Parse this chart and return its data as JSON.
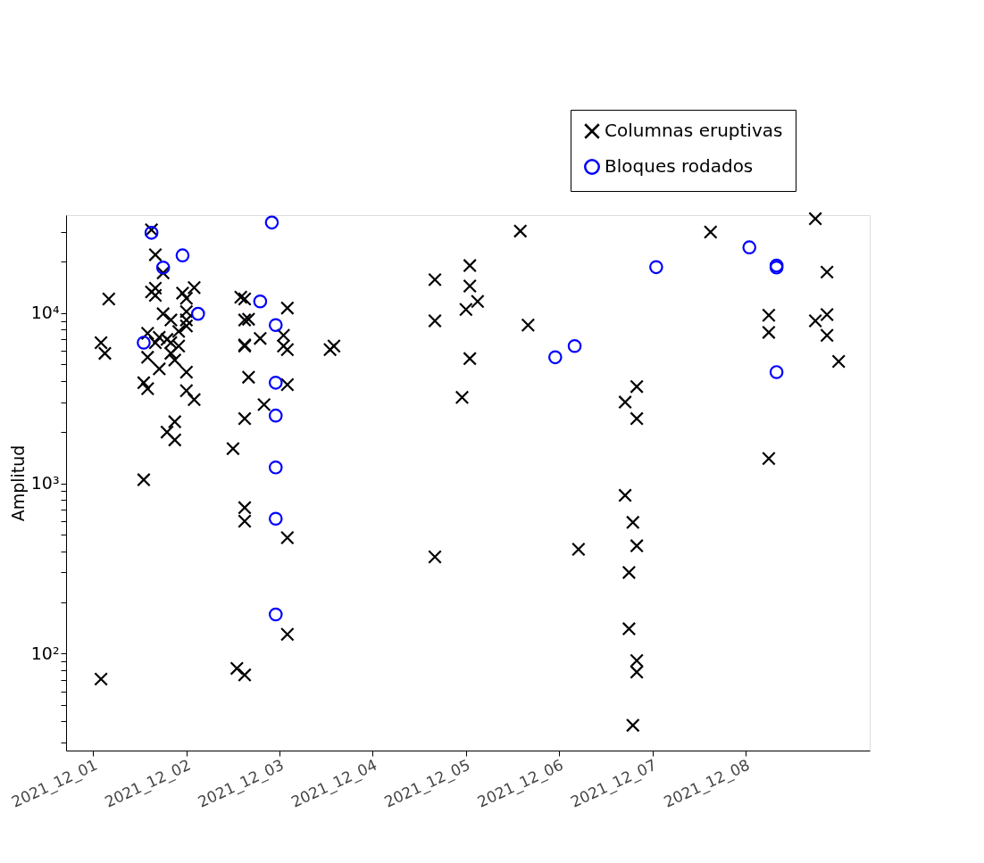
{
  "chart_data": {
    "type": "scatter",
    "ylabel": "Amplitud",
    "log": "y",
    "grid": false,
    "legend": "top right",
    "xlim": [
      "2021-11-30T17:00",
      "2021-12-09T08:00"
    ],
    "xticks": [
      {
        "value": "2021-12-01",
        "label": "2021_12_01"
      },
      {
        "value": "2021-12-02",
        "label": "2021_12_02"
      },
      {
        "value": "2021-12-03",
        "label": "2021_12_03"
      },
      {
        "value": "2021-12-04",
        "label": "2021_12_04"
      },
      {
        "value": "2021-12-05",
        "label": "2021_12_05"
      },
      {
        "value": "2021-12-06",
        "label": "2021_12_06"
      },
      {
        "value": "2021-12-07",
        "label": "2021_12_07"
      },
      {
        "value": "2021-12-08",
        "label": "2021_12_08"
      }
    ],
    "ylim": [
      27,
      37600
    ],
    "yticks": [
      {
        "value": 30,
        "label": null
      },
      {
        "value": 40,
        "label": null
      },
      {
        "value": 50,
        "label": null
      },
      {
        "value": 60,
        "label": null
      },
      {
        "value": 70,
        "label": null
      },
      {
        "value": 80,
        "label": null
      },
      {
        "value": 90,
        "label": null
      },
      {
        "value": 100,
        "label": "10²"
      },
      {
        "value": 200,
        "label": null
      },
      {
        "value": 300,
        "label": null
      },
      {
        "value": 400,
        "label": null
      },
      {
        "value": 500,
        "label": null
      },
      {
        "value": 600,
        "label": null
      },
      {
        "value": 700,
        "label": null
      },
      {
        "value": 800,
        "label": null
      },
      {
        "value": 900,
        "label": null
      },
      {
        "value": 1000,
        "label": "10³"
      },
      {
        "value": 2000,
        "label": null
      },
      {
        "value": 3000,
        "label": null
      },
      {
        "value": 4000,
        "label": null
      },
      {
        "value": 5000,
        "label": null
      },
      {
        "value": 6000,
        "label": null
      },
      {
        "value": 7000,
        "label": null
      },
      {
        "value": 8000,
        "label": null
      },
      {
        "value": 9000,
        "label": null
      },
      {
        "value": 10000,
        "label": "10⁴"
      },
      {
        "value": 20000,
        "label": null
      },
      {
        "value": 30000,
        "label": null
      }
    ],
    "series": [
      {
        "name": "Columnas eruptivas",
        "color": "#000000",
        "marker": "cross",
        "x": [
          "2021-12-01T15:00",
          "2021-12-01T16:00",
          "2021-12-01T18:00",
          "2021-12-01T16:00",
          "2021-12-01T15:00",
          "2021-12-01T16:00",
          "2021-12-01T04:00",
          "2021-12-01T23:00",
          "2021-12-02T02:00",
          "2021-12-02T00:00",
          "2021-12-01T18:00",
          "2021-12-01T20:00",
          "2021-12-02T00:00",
          "2021-12-02T00:00",
          "2021-12-01T22:00",
          "2021-12-02T00:00",
          "2021-12-01T14:00",
          "2021-12-01T17:00",
          "2021-12-01T19:00",
          "2021-12-01T20:00",
          "2021-12-01T16:00",
          "2021-12-01T02:00",
          "2021-12-01T03:00",
          "2021-12-01T22:00",
          "2021-12-01T20:00",
          "2021-12-01T21:00",
          "2021-12-01T14:00",
          "2021-12-01T17:00",
          "2021-12-02T00:00",
          "2021-12-01T13:00",
          "2021-12-01T14:00",
          "2021-12-02T00:00",
          "2021-12-02T02:00",
          "2021-12-01T21:00",
          "2021-12-01T19:00",
          "2021-12-01T21:00",
          "2021-12-01T13:00",
          "2021-12-01T02:00",
          "2021-12-02T14:00",
          "2021-12-02T15:00",
          "2021-12-02T15:00",
          "2021-12-02T16:00",
          "2021-12-02T15:00",
          "2021-12-02T15:00",
          "2021-12-02T19:00",
          "2021-12-03T02:00",
          "2021-12-03T01:00",
          "2021-12-03T01:00",
          "2021-12-03T02:00",
          "2021-12-02T16:00",
          "2021-12-03T02:00",
          "2021-12-02T20:00",
          "2021-12-02T15:00",
          "2021-12-02T12:00",
          "2021-12-02T15:00",
          "2021-12-02T15:00",
          "2021-12-03T02:00",
          "2021-12-03T02:00",
          "2021-12-02T13:00",
          "2021-12-02T15:00",
          "2021-12-03T14:00",
          "2021-12-03T13:00",
          "2021-12-05T14:00",
          "2021-12-04T16:00",
          "2021-12-05T01:00",
          "2021-12-05T01:00",
          "2021-12-05T00:00",
          "2021-12-05T03:00",
          "2021-12-04T16:00",
          "2021-12-05T16:00",
          "2021-12-05T01:00",
          "2021-12-04T23:00",
          "2021-12-04T16:00",
          "2021-12-06T05:00",
          "2021-12-08T18:00",
          "2021-12-07T15:00",
          "2021-12-08T21:00",
          "2021-12-08T06:00",
          "2021-12-08T06:00",
          "2021-12-08T21:00",
          "2021-12-08T18:00",
          "2021-12-08T21:00",
          "2021-12-09T00:00",
          "2021-12-06T20:00",
          "2021-12-06T17:00",
          "2021-12-06T20:00",
          "2021-12-08T06:00",
          "2021-12-06T17:00",
          "2021-12-06T19:00",
          "2021-12-06T20:00",
          "2021-12-06T18:00",
          "2021-12-06T18:00",
          "2021-12-06T20:00",
          "2021-12-06T20:00",
          "2021-12-06T19:00"
        ],
        "values": [
          30800,
          22000,
          17200,
          14000,
          13300,
          12700,
          12100,
          13100,
          14100,
          12200,
          9900,
          9100,
          10200,
          9100,
          7800,
          8400,
          7600,
          7200,
          7000,
          6700,
          6700,
          6700,
          5800,
          6400,
          5800,
          5300,
          5500,
          4700,
          4500,
          3900,
          3600,
          3500,
          3100,
          2300,
          2000,
          1800,
          1050,
          71,
          12400,
          12100,
          9100,
          9200,
          6500,
          6400,
          7100,
          10700,
          7400,
          6400,
          6100,
          4200,
          3800,
          2900,
          2400,
          1600,
          720,
          600,
          480,
          130,
          82,
          75,
          6400,
          6100,
          30300,
          15700,
          19000,
          14400,
          10500,
          11700,
          9000,
          8500,
          5400,
          3200,
          370,
          410,
          35800,
          29900,
          17400,
          9700,
          7700,
          9800,
          9000,
          7400,
          5200,
          3700,
          3000,
          2400,
          1400,
          850,
          590,
          430,
          300,
          140,
          91,
          78,
          38
        ]
      },
      {
        "name": "Bloques rodados",
        "color": "#0000ff",
        "marker": "circle",
        "x": [
          "2021-12-01T15:00",
          "2021-12-01T23:00",
          "2021-12-01T18:00",
          "2021-12-02T22:00",
          "2021-12-02T19:00",
          "2021-12-02T03:00",
          "2021-12-02T23:00",
          "2021-12-01T13:00",
          "2021-12-02T23:00",
          "2021-12-02T23:00",
          "2021-12-02T23:00",
          "2021-12-02T23:00",
          "2021-12-02T23:00",
          "2021-12-05T23:00",
          "2021-12-06T04:00",
          "2021-12-07T01:00",
          "2021-12-08T01:00",
          "2021-12-08T08:00",
          "2021-12-08T08:00",
          "2021-12-08T08:00"
        ],
        "values": [
          29600,
          21800,
          18500,
          34000,
          11700,
          9900,
          8500,
          6700,
          3900,
          2500,
          1240,
          620,
          170,
          5500,
          6400,
          18600,
          24300,
          19000,
          18500,
          4500
        ]
      }
    ]
  }
}
